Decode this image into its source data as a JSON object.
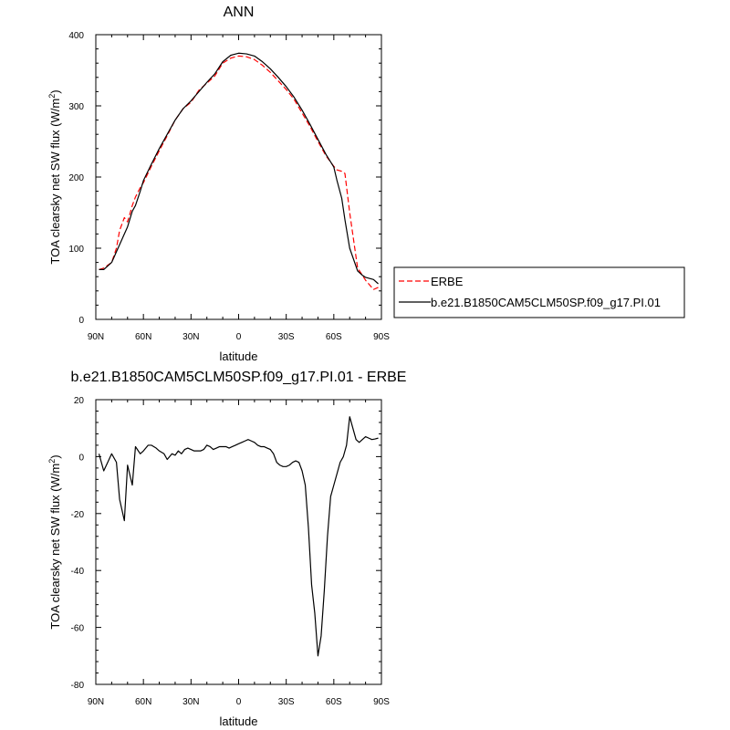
{
  "chart_data": [
    {
      "type": "line",
      "title": "ANN",
      "xlabel": "latitude",
      "ylabel": "TOA clearsky net SW flux (W/m",
      "ylabel_sup": "2",
      "ylabel_end": ")",
      "xlim": [
        90,
        -90
      ],
      "ylim": [
        0,
        400
      ],
      "x_ticks": [
        {
          "value": 90,
          "label": "90N"
        },
        {
          "value": 60,
          "label": "60N"
        },
        {
          "value": 30,
          "label": "30N"
        },
        {
          "value": 0,
          "label": "0"
        },
        {
          "value": -30,
          "label": "30S"
        },
        {
          "value": -60,
          "label": "60S"
        },
        {
          "value": -90,
          "label": "90S"
        }
      ],
      "y_ticks": [
        0,
        100,
        200,
        300,
        400
      ],
      "legend_position": "right",
      "series": [
        {
          "name": "ERBE",
          "color": "#ff0000",
          "dash": "dashed",
          "x": [
            88,
            85,
            80,
            77,
            75,
            72,
            70,
            67,
            65,
            62,
            60,
            55,
            50,
            45,
            40,
            35,
            30,
            25,
            20,
            15,
            10,
            5,
            0,
            -5,
            -10,
            -15,
            -20,
            -25,
            -30,
            -35,
            -40,
            -45,
            -50,
            -55,
            -60,
            -62,
            -65,
            -67,
            -70,
            -75,
            -78,
            -80,
            -85,
            -88
          ],
          "y": [
            70,
            72,
            80,
            100,
            125,
            143,
            137,
            160,
            172,
            185,
            192,
            215,
            237,
            258,
            280,
            296,
            305,
            322,
            332,
            342,
            360,
            367,
            370,
            369,
            365,
            357,
            347,
            335,
            323,
            309,
            290,
            271,
            250,
            230,
            215,
            210,
            208,
            205,
            150,
            72,
            62,
            55,
            42,
            45
          ]
        },
        {
          "name": "b.e21.B1850CAM5CLM50SP.f09_g17.PI.01",
          "color": "#000000",
          "dash": "solid",
          "x": [
            88,
            85,
            80,
            77,
            75,
            72,
            70,
            67,
            65,
            62,
            60,
            55,
            50,
            45,
            40,
            35,
            30,
            25,
            20,
            15,
            10,
            5,
            0,
            -5,
            -10,
            -15,
            -20,
            -25,
            -30,
            -35,
            -40,
            -45,
            -50,
            -55,
            -60,
            -62,
            -65,
            -67,
            -70,
            -75,
            -78,
            -80,
            -85,
            -88
          ],
          "y": [
            70,
            70,
            80,
            95,
            105,
            120,
            130,
            152,
            160,
            180,
            195,
            218,
            240,
            260,
            280,
            296,
            307,
            320,
            333,
            345,
            362,
            371,
            374,
            373,
            370,
            362,
            352,
            340,
            327,
            312,
            294,
            274,
            253,
            232,
            214,
            195,
            170,
            140,
            100,
            68,
            62,
            59,
            56,
            50
          ]
        }
      ]
    },
    {
      "type": "line",
      "title": "b.e21.B1850CAM5CLM50SP.f09_g17.PI.01 - ERBE",
      "xlabel": "latitude",
      "ylabel": "TOA clearsky net SW flux (W/m",
      "ylabel_sup": "2",
      "ylabel_end": ")",
      "xlim": [
        90,
        -90
      ],
      "ylim": [
        -80,
        20
      ],
      "x_ticks": [
        {
          "value": 90,
          "label": "90N"
        },
        {
          "value": 60,
          "label": "60N"
        },
        {
          "value": 30,
          "label": "30N"
        },
        {
          "value": 0,
          "label": "0"
        },
        {
          "value": -30,
          "label": "30S"
        },
        {
          "value": -60,
          "label": "60S"
        },
        {
          "value": -90,
          "label": "90S"
        }
      ],
      "y_ticks": [
        -80,
        -60,
        -40,
        -20,
        0,
        20
      ],
      "series": [
        {
          "color": "#000000",
          "dash": "solid",
          "x": [
            88,
            85,
            80,
            77,
            75,
            72,
            70,
            67,
            65,
            62,
            60,
            57,
            55,
            52,
            50,
            47,
            45,
            42,
            40,
            38,
            36,
            34,
            32,
            30,
            28,
            26,
            24,
            22,
            20,
            18,
            16,
            14,
            12,
            10,
            8,
            6,
            4,
            2,
            0,
            -2,
            -4,
            -6,
            -8,
            -10,
            -12,
            -14,
            -16,
            -18,
            -20,
            -22,
            -24,
            -26,
            -28,
            -30,
            -32,
            -34,
            -36,
            -38,
            -40,
            -42,
            -44,
            -46,
            -48,
            -50,
            -52,
            -54,
            -56,
            -58,
            -60,
            -62,
            -64,
            -66,
            -68,
            -70,
            -72,
            -74,
            -76,
            -78,
            -80,
            -82,
            -84,
            -86,
            -88
          ],
          "y": [
            1,
            -5,
            1,
            -2,
            -15,
            -22.5,
            -3,
            -10,
            3.5,
            1,
            2,
            4,
            4,
            3,
            2,
            1,
            -1,
            1,
            0.5,
            2,
            1,
            2.5,
            3,
            2.5,
            2,
            2,
            2,
            2.5,
            4,
            3.5,
            2.5,
            3,
            3.5,
            3.5,
            3.5,
            3,
            3.5,
            4,
            4.5,
            5,
            5.5,
            6,
            5.5,
            5,
            4,
            3.5,
            3.5,
            3,
            2.5,
            1,
            -2,
            -3,
            -3.5,
            -3.5,
            -3,
            -2,
            -1.5,
            -2,
            -5,
            -10,
            -25,
            -45,
            -55,
            -70,
            -63,
            -47,
            -28,
            -14,
            -10,
            -6,
            -2,
            0,
            4,
            14,
            10,
            6,
            5,
            6,
            7,
            6.5,
            6,
            6.2,
            6.5
          ]
        }
      ]
    }
  ]
}
